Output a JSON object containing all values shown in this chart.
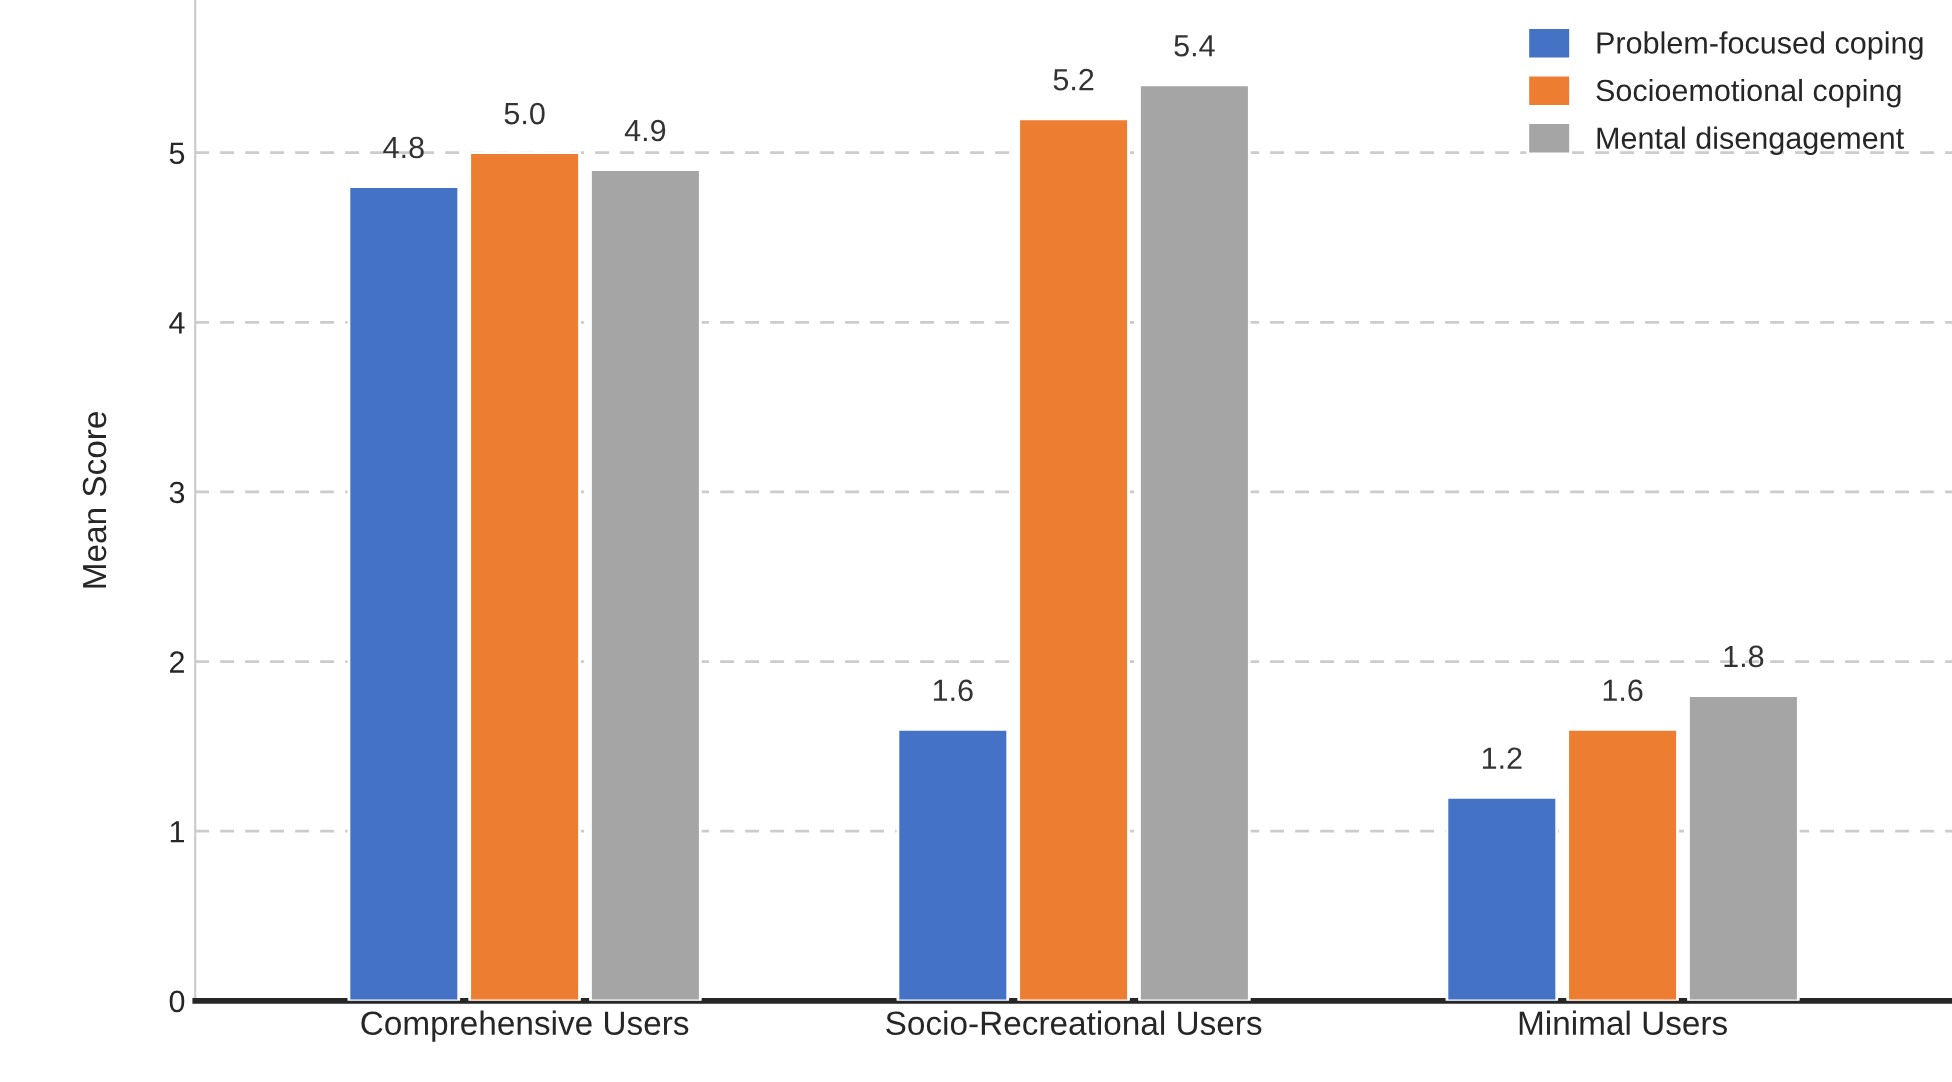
{
  "chart_data": {
    "type": "bar",
    "ylabel": "Mean Score",
    "categories": [
      "Comprehensive Users",
      "Socio-Recreational Users",
      "Minimal Users"
    ],
    "series": [
      {
        "name": "Problem-focused coping",
        "color": "#4472c4",
        "values": [
          4.8,
          1.6,
          1.2
        ],
        "value_labels": [
          "4.8",
          "1.6",
          "1.2"
        ]
      },
      {
        "name": "Socioemotional coping",
        "color": "#ed7d31",
        "values": [
          5.0,
          5.2,
          1.6
        ],
        "value_labels": [
          "5.0",
          "5.2",
          "1.6"
        ]
      },
      {
        "name": "Mental disengagement",
        "color": "#a5a5a5",
        "values": [
          4.9,
          5.4,
          1.8
        ],
        "value_labels": [
          "4.9",
          "5.4",
          "1.8"
        ]
      }
    ],
    "ylim": [
      0,
      5.9
    ],
    "yticks": [
      0,
      1,
      2,
      3,
      4,
      5
    ],
    "grid": "y",
    "legend": "top right"
  }
}
